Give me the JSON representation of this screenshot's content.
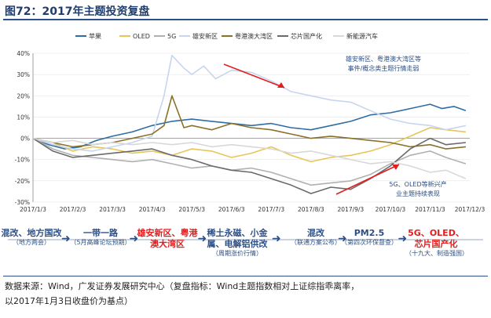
{
  "figure": {
    "title": "图72：2017年主题投资复盘"
  },
  "chart_data": {
    "type": "line",
    "xlabels": [
      "2017/1/3",
      "2017/2/3",
      "2017/3/3",
      "2017/4/3",
      "2017/5/3",
      "2017/6/3",
      "2017/7/3",
      "2017/8/3",
      "2017/9/3",
      "2017/10/3",
      "2017/11/3",
      "2017/12/3"
    ],
    "yticks": [
      "40%",
      "30%",
      "20%",
      "10%",
      "0%",
      "-10%",
      "-20%",
      "-30%"
    ],
    "ylim": [
      -0.3,
      0.4
    ],
    "xlim": [
      0,
      11
    ],
    "series": [
      {
        "name": "苹果",
        "color": "#2e6da4",
        "x": [
          0,
          0.4,
          0.8,
          1.2,
          1.6,
          2,
          2.5,
          3,
          3.5,
          4,
          4.5,
          5,
          5.5,
          6,
          6.5,
          7,
          7.5,
          8,
          8.5,
          9,
          9.5,
          10,
          10.3,
          10.6,
          10.9
        ],
        "y": [
          0,
          -0.03,
          -0.05,
          -0.04,
          -0.01,
          0.01,
          0.03,
          0.06,
          0.08,
          0.09,
          0.08,
          0.07,
          0.06,
          0.07,
          0.05,
          0.04,
          0.06,
          0.08,
          0.11,
          0.12,
          0.14,
          0.16,
          0.14,
          0.15,
          0.13
        ]
      },
      {
        "name": "OLED",
        "color": "#e6c55a",
        "x": [
          0,
          0.5,
          1,
          1.5,
          2,
          2.5,
          3,
          3.5,
          4,
          4.5,
          5,
          5.5,
          6,
          6.5,
          7,
          7.5,
          8,
          8.5,
          9,
          9.5,
          10,
          10.4,
          10.9
        ],
        "y": [
          0,
          -0.02,
          -0.06,
          -0.04,
          -0.05,
          -0.07,
          -0.06,
          -0.08,
          -0.05,
          -0.06,
          -0.09,
          -0.07,
          -0.04,
          -0.08,
          -0.11,
          -0.09,
          -0.08,
          -0.06,
          -0.03,
          0.01,
          0.05,
          0.04,
          0.03
        ]
      },
      {
        "name": "5G",
        "color": "#b0b0b0",
        "x": [
          0,
          0.5,
          1,
          1.5,
          2,
          2.5,
          3,
          3.5,
          4,
          4.5,
          5,
          5.5,
          6,
          6.5,
          7,
          7.5,
          8,
          8.5,
          9,
          9.5,
          10,
          10.4,
          10.9
        ],
        "y": [
          0,
          -0.05,
          -0.08,
          -0.09,
          -0.1,
          -0.11,
          -0.1,
          -0.12,
          -0.14,
          -0.13,
          -0.15,
          -0.14,
          -0.16,
          -0.19,
          -0.22,
          -0.21,
          -0.2,
          -0.17,
          -0.12,
          -0.08,
          -0.06,
          -0.09,
          -0.12
        ]
      },
      {
        "name": "雄安新区",
        "color": "#c6d6ee",
        "x": [
          0,
          0.5,
          1,
          1.5,
          2,
          2.5,
          3,
          3.3,
          3.5,
          3.8,
          4,
          4.3,
          4.6,
          5,
          5.5,
          6,
          6.5,
          7,
          7.5,
          8,
          8.5,
          9,
          9.5,
          10,
          10.4,
          10.9
        ],
        "y": [
          0,
          -0.03,
          -0.05,
          -0.06,
          -0.04,
          -0.02,
          0.01,
          0.2,
          0.39,
          0.33,
          0.3,
          0.34,
          0.28,
          0.32,
          0.31,
          0.27,
          0.22,
          0.2,
          0.18,
          0.17,
          0.13,
          0.09,
          0.07,
          0.06,
          0.04,
          0.06
        ]
      },
      {
        "name": "粤港澳大湾区",
        "color": "#8a7028",
        "x": [
          0,
          0.5,
          1,
          1.5,
          2,
          2.5,
          3,
          3.3,
          3.5,
          3.8,
          4,
          4.5,
          5,
          5.5,
          6,
          6.5,
          7,
          7.5,
          8,
          8.5,
          9,
          9.5,
          10,
          10.4,
          10.9
        ],
        "y": [
          0,
          -0.02,
          -0.04,
          -0.03,
          -0.02,
          0,
          0.02,
          0.06,
          0.2,
          0.05,
          0.06,
          0.04,
          0.07,
          0.05,
          0.04,
          0.02,
          0.0,
          0.01,
          0.0,
          -0.01,
          -0.02,
          -0.04,
          -0.03,
          -0.05,
          -0.04
        ]
      },
      {
        "name": "芯片国产化",
        "color": "#6a6a6a",
        "x": [
          0,
          0.5,
          1,
          1.5,
          2,
          2.5,
          3,
          3.5,
          4,
          4.5,
          5,
          5.5,
          6,
          6.5,
          7,
          7.5,
          8,
          8.5,
          9,
          9.5,
          10,
          10.4,
          10.9
        ],
        "y": [
          0,
          -0.06,
          -0.09,
          -0.08,
          -0.07,
          -0.06,
          -0.05,
          -0.08,
          -0.1,
          -0.13,
          -0.15,
          -0.16,
          -0.19,
          -0.22,
          -0.26,
          -0.23,
          -0.24,
          -0.19,
          -0.13,
          -0.05,
          0.0,
          -0.03,
          -0.02
        ]
      },
      {
        "name": "新能源汽车",
        "color": "#d8d8d8",
        "x": [
          0,
          0.5,
          1,
          1.5,
          2,
          2.5,
          3,
          3.5,
          4,
          4.5,
          5,
          5.5,
          6,
          6.5,
          7,
          7.5,
          8,
          8.5,
          9,
          9.5,
          10,
          10.4,
          10.9
        ],
        "y": [
          0,
          -0.02,
          -0.01,
          -0.03,
          -0.02,
          -0.03,
          -0.02,
          -0.03,
          -0.02,
          -0.04,
          -0.03,
          -0.04,
          -0.05,
          -0.07,
          -0.06,
          -0.08,
          -0.1,
          -0.12,
          -0.11,
          -0.13,
          -0.16,
          -0.15,
          -0.19
        ]
      }
    ],
    "annotations": [
      {
        "text": "雄安新区、粤港澳大湾区等事件/概念类主题行情走弱",
        "color": "#2d4f86"
      },
      {
        "text": "5G、OLED等新兴产业主题持续表现",
        "color": "#2d4f86"
      }
    ]
  },
  "timeline": {
    "events": [
      {
        "main": "混改、地方国改",
        "sub": "（地方两会）",
        "highlight": false
      },
      {
        "main": "一带一路",
        "sub": "（5月高峰论坛预期）",
        "highlight": false
      },
      {
        "main": "雄安新区、粤港澳大湾区",
        "sub": "",
        "highlight": true
      },
      {
        "main": "稀土永磁、小金属、电解铝供改",
        "sub": "（周期涨价行情）",
        "highlight": false
      },
      {
        "main": "混改",
        "sub": "（联通方案公布）",
        "highlight": false
      },
      {
        "main": "PM2.5",
        "sub": "（第四次环保督查）",
        "highlight": false
      },
      {
        "main": "5G、OLED、芯片国产化",
        "sub": "（十九大、制造强国）",
        "highlight": true
      }
    ]
  },
  "footer": {
    "line1": "数据来源：Wind，广发证券发展研究中心（复盘指标：Wind主题指数相对上证综指乖离率，",
    "line2": "以2017年1月3日收盘价为基点）"
  }
}
